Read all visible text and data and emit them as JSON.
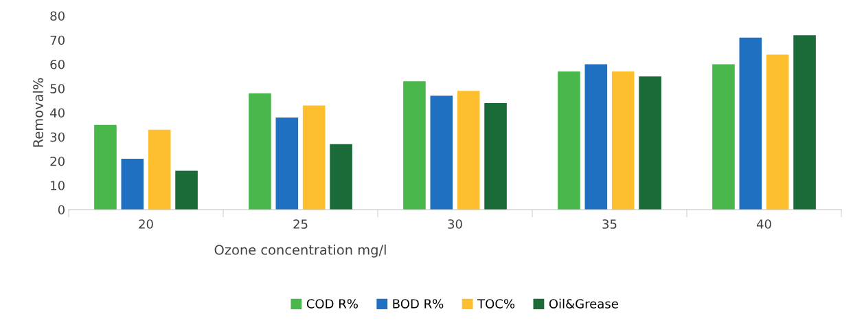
{
  "chart_data": {
    "type": "bar",
    "xlabel": "Ozone concentration mg/l",
    "ylabel": "Removal%",
    "categories": [
      "20",
      "25",
      "30",
      "35",
      "40"
    ],
    "series": [
      {
        "name": "COD R%",
        "color": "#4ab74c",
        "values": [
          35,
          48,
          53,
          57,
          60
        ]
      },
      {
        "name": "BOD R%",
        "color": "#1f70c1",
        "values": [
          21,
          38,
          47,
          60,
          71
        ]
      },
      {
        "name": "TOC%",
        "color": "#fdbf2d",
        "values": [
          33,
          43,
          49,
          57,
          64
        ]
      },
      {
        "name": "Oil&Grease",
        "color": "#1a6b37",
        "values": [
          16,
          27,
          44,
          55,
          72
        ]
      }
    ],
    "ylim": [
      0,
      80
    ],
    "yticks": [
      0,
      10,
      20,
      30,
      40,
      50,
      60,
      70,
      80
    ],
    "grid": false,
    "legend": "bottom"
  }
}
